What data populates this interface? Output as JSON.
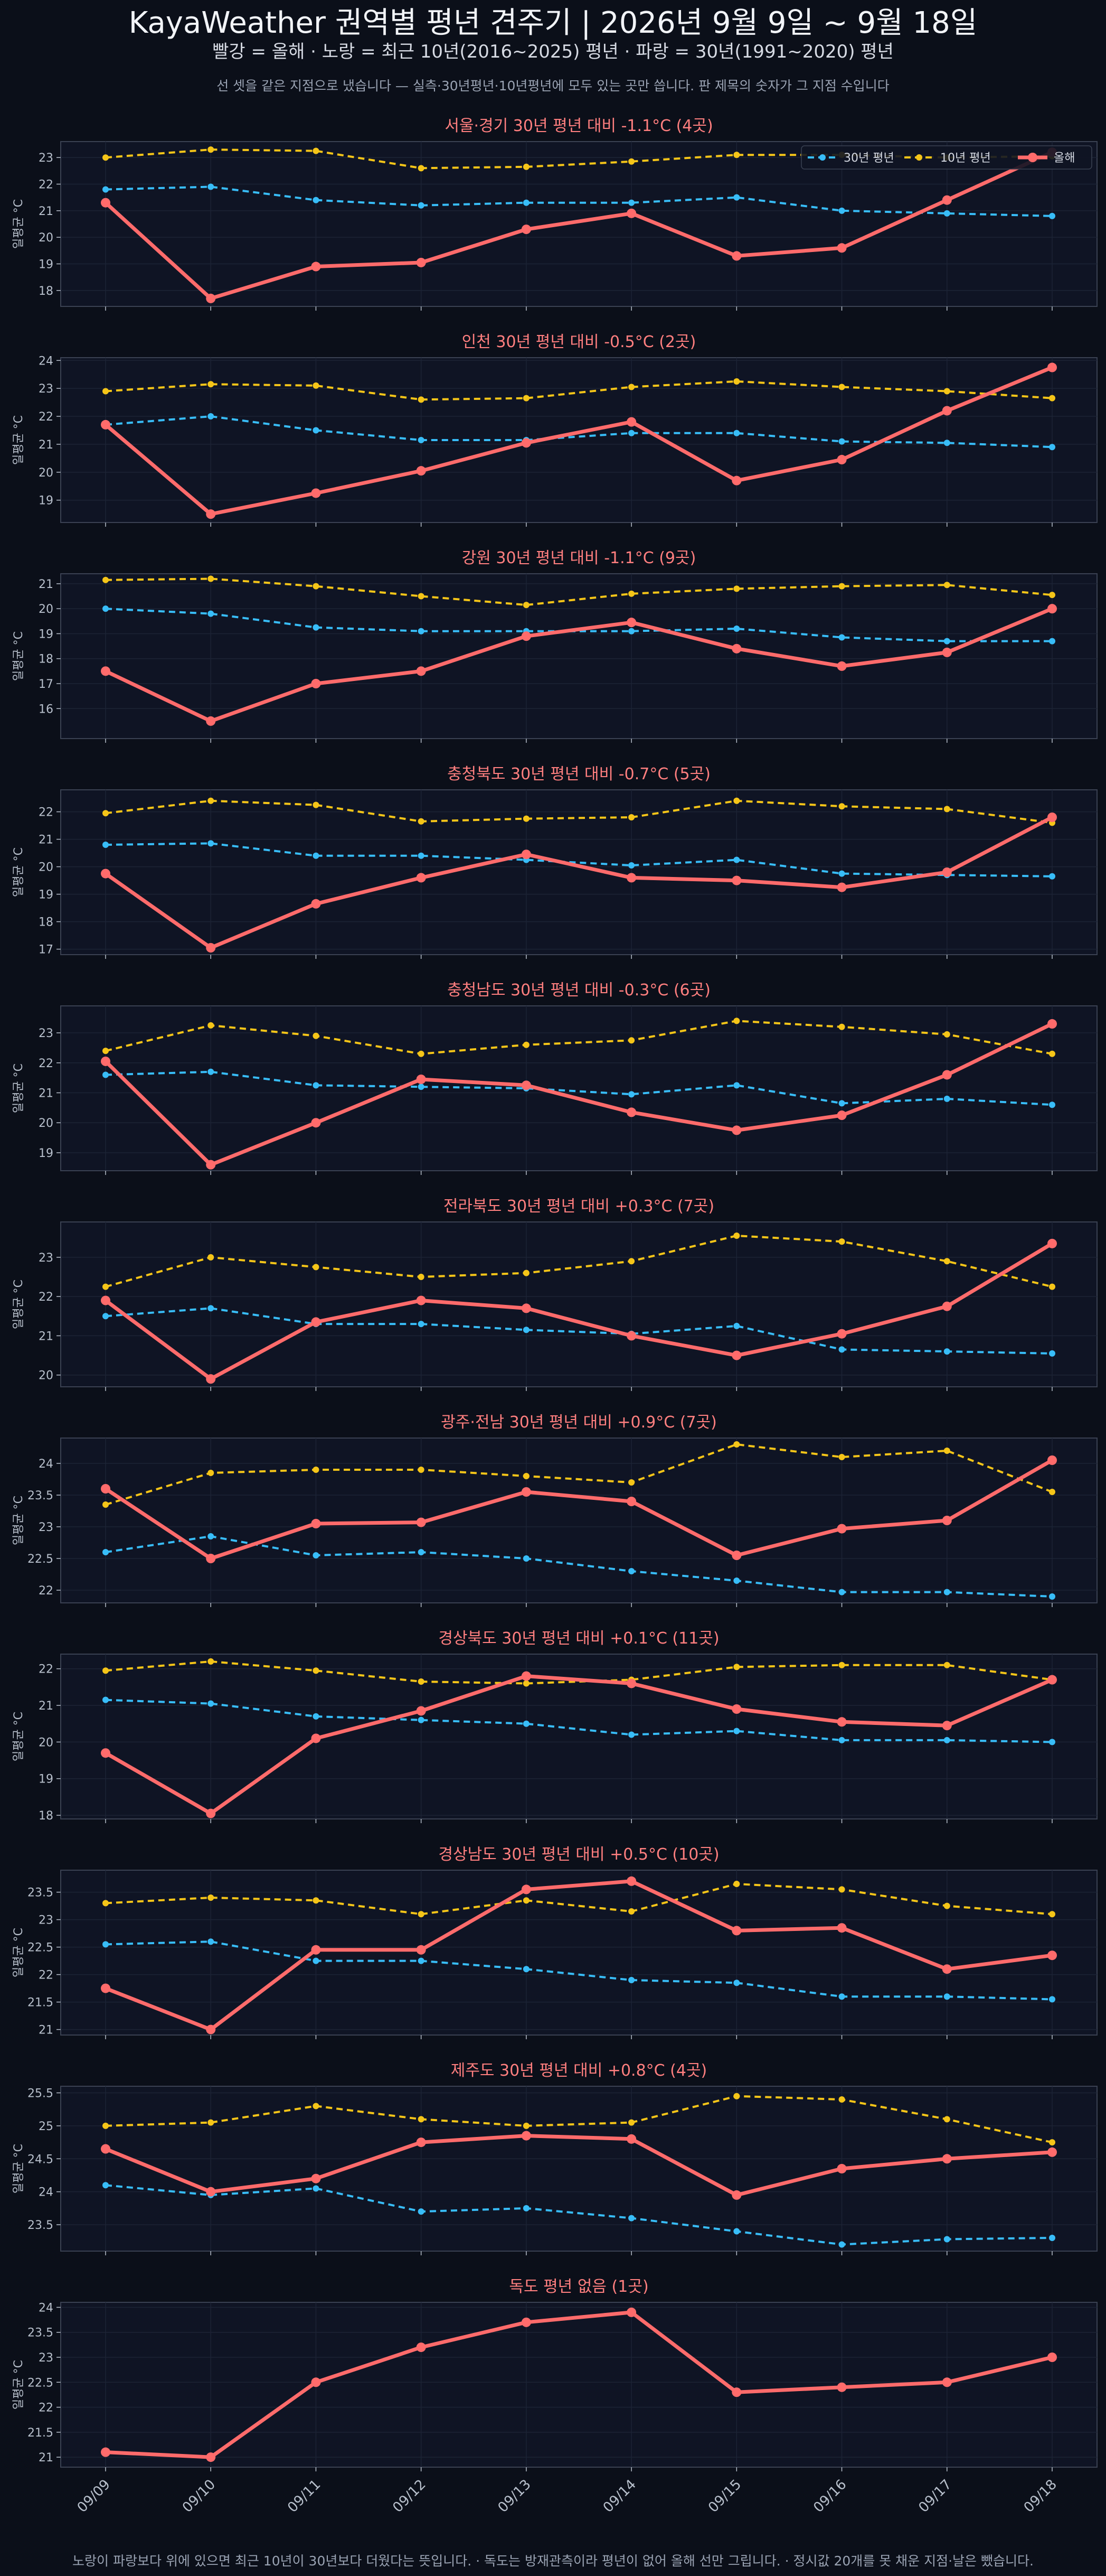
{
  "header": {
    "title": "KayaWeather 권역별 평년 견주기 | 2026년 9월 9일 ~ 9월 18일",
    "subtitle": "빨강 = 올해   ·   노랑 = 최근 10년(2016~2025) 평년   ·   파랑 = 30년(1991~2020) 평년",
    "note": "선 셋을 같은 지점으로 냈습니다 — 실측·30년평년·10년평년에 모두 있는 곳만 씁니다. 판 제목의 숫자가 그 지점 수입니다"
  },
  "footer": {
    "text": "노랑이 파랑보다 위에 있으면 최근 10년이 30년보다 더웠다는 뜻입니다.   ·   독도는 방재관측이라 평년이 없어 올해 선만 그립니다.   ·   정시값 20개를 못 채운 지점·날은 뺐습니다."
  },
  "colors": {
    "this_year": "#ff6b6b",
    "normal_10y": "#f5c518",
    "normal_30y": "#38bdf8",
    "panel_bg": "#0f1424",
    "panel_border": "#3a4152",
    "panel_title": "#ff7f7f",
    "tick_text": "#b8c0cc",
    "grid": "#1c2335"
  },
  "chart_data": {
    "type": "line",
    "x": [
      "09/09",
      "09/10",
      "09/11",
      "09/12",
      "09/13",
      "09/14",
      "09/15",
      "09/16",
      "09/17",
      "09/18"
    ],
    "ylabel": "일평균 °C",
    "legend": {
      "placement": "top-right of first panel",
      "entries": [
        "30년 평년",
        "10년 평년",
        "올해"
      ]
    },
    "panels": [
      {
        "title": "서울·경기   30년 평년 대비 -1.1°C  (4곳)",
        "ylim": [
          17.4,
          23.6
        ],
        "yticks": [
          18,
          19,
          20,
          21,
          22,
          23
        ],
        "series": [
          {
            "name": "30년 평년",
            "values": [
              21.8,
              21.9,
              21.4,
              21.2,
              21.3,
              21.3,
              21.5,
              21.0,
              20.9,
              20.8
            ]
          },
          {
            "name": "10년 평년",
            "values": [
              23.0,
              23.3,
              23.25,
              22.6,
              22.65,
              22.85,
              23.1,
              23.1,
              23.0,
              23.05
            ]
          },
          {
            "name": "올해",
            "values": [
              21.3,
              17.7,
              18.9,
              19.05,
              20.3,
              20.9,
              19.3,
              19.6,
              21.4,
              23.2
            ]
          }
        ]
      },
      {
        "title": "인천   30년 평년 대비 -0.5°C  (2곳)",
        "ylim": [
          18.2,
          24.1
        ],
        "yticks": [
          19,
          20,
          21,
          22,
          23,
          24
        ],
        "series": [
          {
            "name": "30년 평년",
            "values": [
              21.7,
              22.0,
              21.5,
              21.15,
              21.15,
              21.4,
              21.4,
              21.1,
              21.05,
              20.9
            ]
          },
          {
            "name": "10년 평년",
            "values": [
              22.9,
              23.15,
              23.1,
              22.6,
              22.65,
              23.05,
              23.25,
              23.05,
              22.9,
              22.65
            ]
          },
          {
            "name": "올해",
            "values": [
              21.7,
              18.5,
              19.25,
              20.05,
              21.05,
              21.8,
              19.7,
              20.45,
              22.2,
              23.75
            ]
          }
        ]
      },
      {
        "title": "강원   30년 평년 대비 -1.1°C  (9곳)",
        "ylim": [
          14.8,
          21.4
        ],
        "yticks": [
          16,
          17,
          18,
          19,
          20,
          21
        ],
        "series": [
          {
            "name": "30년 평년",
            "values": [
              20.0,
              19.8,
              19.25,
              19.1,
              19.1,
              19.1,
              19.2,
              18.85,
              18.7,
              18.7
            ]
          },
          {
            "name": "10년 평년",
            "values": [
              21.15,
              21.2,
              20.9,
              20.5,
              20.15,
              20.6,
              20.8,
              20.9,
              20.95,
              20.55
            ]
          },
          {
            "name": "올해",
            "values": [
              17.5,
              15.5,
              17.0,
              17.5,
              18.9,
              19.45,
              18.4,
              17.7,
              18.25,
              20.0
            ]
          }
        ]
      },
      {
        "title": "충청북도   30년 평년 대비 -0.7°C  (5곳)",
        "ylim": [
          16.8,
          22.8
        ],
        "yticks": [
          17,
          18,
          19,
          20,
          21,
          22
        ],
        "series": [
          {
            "name": "30년 평년",
            "values": [
              20.8,
              20.85,
              20.4,
              20.4,
              20.25,
              20.05,
              20.25,
              19.75,
              19.7,
              19.65
            ]
          },
          {
            "name": "10년 평년",
            "values": [
              21.95,
              22.4,
              22.25,
              21.65,
              21.75,
              21.8,
              22.4,
              22.2,
              22.1,
              21.6
            ]
          },
          {
            "name": "올해",
            "values": [
              19.75,
              17.05,
              18.65,
              19.6,
              20.45,
              19.6,
              19.5,
              19.25,
              19.8,
              21.8
            ]
          }
        ]
      },
      {
        "title": "충청남도   30년 평년 대비 -0.3°C  (6곳)",
        "ylim": [
          18.4,
          23.9
        ],
        "yticks": [
          19,
          20,
          21,
          22,
          23
        ],
        "series": [
          {
            "name": "30년 평년",
            "values": [
              21.6,
              21.7,
              21.25,
              21.2,
              21.15,
              20.95,
              21.25,
              20.65,
              20.8,
              20.6
            ]
          },
          {
            "name": "10년 평년",
            "values": [
              22.4,
              23.25,
              22.9,
              22.3,
              22.6,
              22.75,
              23.4,
              23.2,
              22.95,
              22.3
            ]
          },
          {
            "name": "올해",
            "values": [
              22.05,
              18.6,
              20.0,
              21.45,
              21.25,
              20.35,
              19.75,
              20.25,
              21.6,
              23.3
            ]
          }
        ]
      },
      {
        "title": "전라북도   30년 평년 대비 +0.3°C  (7곳)",
        "ylim": [
          19.7,
          23.9
        ],
        "yticks": [
          20,
          21,
          22,
          23
        ],
        "series": [
          {
            "name": "30년 평년",
            "values": [
              21.5,
              21.7,
              21.3,
              21.3,
              21.15,
              21.05,
              21.25,
              20.65,
              20.6,
              20.55
            ]
          },
          {
            "name": "10년 평년",
            "values": [
              22.25,
              23.0,
              22.75,
              22.5,
              22.6,
              22.9,
              23.55,
              23.4,
              22.9,
              22.25
            ]
          },
          {
            "name": "올해",
            "values": [
              21.9,
              19.9,
              21.35,
              21.9,
              21.7,
              21.0,
              20.5,
              21.05,
              21.75,
              23.35
            ]
          }
        ]
      },
      {
        "title": "광주·전남   30년 평년 대비 +0.9°C  (7곳)",
        "ylim": [
          21.8,
          24.4
        ],
        "yticks": [
          22.0,
          22.5,
          23.0,
          23.5,
          24.0
        ],
        "series": [
          {
            "name": "30년 평년",
            "values": [
              22.6,
              22.85,
              22.55,
              22.6,
              22.5,
              22.3,
              22.15,
              21.97,
              21.97,
              21.9
            ]
          },
          {
            "name": "10년 평년",
            "values": [
              23.35,
              23.85,
              23.9,
              23.9,
              23.8,
              23.7,
              24.3,
              24.1,
              24.2,
              23.55
            ]
          },
          {
            "name": "올해",
            "values": [
              23.6,
              22.5,
              23.05,
              23.07,
              23.55,
              23.4,
              22.55,
              22.97,
              23.1,
              24.05
            ]
          }
        ]
      },
      {
        "title": "경상북도   30년 평년 대비 +0.1°C  (11곳)",
        "ylim": [
          17.9,
          22.4
        ],
        "yticks": [
          18,
          19,
          20,
          21,
          22
        ],
        "series": [
          {
            "name": "30년 평년",
            "values": [
              21.15,
              21.05,
              20.7,
              20.6,
              20.5,
              20.2,
              20.3,
              20.05,
              20.05,
              20.0
            ]
          },
          {
            "name": "10년 평년",
            "values": [
              21.95,
              22.2,
              21.95,
              21.65,
              21.6,
              21.7,
              22.05,
              22.1,
              22.1,
              21.7
            ]
          },
          {
            "name": "올해",
            "values": [
              19.7,
              18.05,
              20.1,
              20.85,
              21.8,
              21.6,
              20.9,
              20.55,
              20.45,
              21.7
            ]
          }
        ]
      },
      {
        "title": "경상남도   30년 평년 대비 +0.5°C  (10곳)",
        "ylim": [
          20.9,
          23.9
        ],
        "yticks": [
          21.0,
          21.5,
          22.0,
          22.5,
          23.0,
          23.5
        ],
        "series": [
          {
            "name": "30년 평년",
            "values": [
              22.55,
              22.6,
              22.25,
              22.25,
              22.1,
              21.9,
              21.85,
              21.6,
              21.6,
              21.55
            ]
          },
          {
            "name": "10년 평년",
            "values": [
              23.3,
              23.4,
              23.35,
              23.1,
              23.35,
              23.15,
              23.65,
              23.55,
              23.25,
              23.1
            ]
          },
          {
            "name": "올해",
            "values": [
              21.75,
              21.0,
              22.45,
              22.45,
              23.55,
              23.7,
              22.8,
              22.85,
              22.1,
              22.35
            ]
          }
        ]
      },
      {
        "title": "제주도   30년 평년 대비 +0.8°C  (4곳)",
        "ylim": [
          23.1,
          25.6
        ],
        "yticks": [
          23.5,
          24.0,
          24.5,
          25.0,
          25.5
        ],
        "series": [
          {
            "name": "30년 평년",
            "values": [
              24.1,
              23.95,
              24.05,
              23.7,
              23.75,
              23.6,
              23.4,
              23.2,
              23.28,
              23.3
            ]
          },
          {
            "name": "10년 평년",
            "values": [
              25.0,
              25.05,
              25.3,
              25.1,
              25.0,
              25.05,
              25.45,
              25.4,
              25.1,
              24.75
            ]
          },
          {
            "name": "올해",
            "values": [
              24.65,
              24.0,
              24.2,
              24.75,
              24.85,
              24.8,
              23.95,
              24.35,
              24.5,
              24.6
            ]
          }
        ]
      },
      {
        "title": "독도   평년 없음  (1곳)",
        "ylim": [
          20.8,
          24.1
        ],
        "yticks": [
          21.0,
          21.5,
          22.0,
          22.5,
          23.0,
          23.5,
          24.0
        ],
        "series": [
          {
            "name": "올해",
            "values": [
              21.1,
              21.0,
              22.5,
              23.2,
              23.7,
              23.9,
              22.3,
              22.4,
              22.5,
              23.0
            ]
          }
        ]
      }
    ]
  }
}
